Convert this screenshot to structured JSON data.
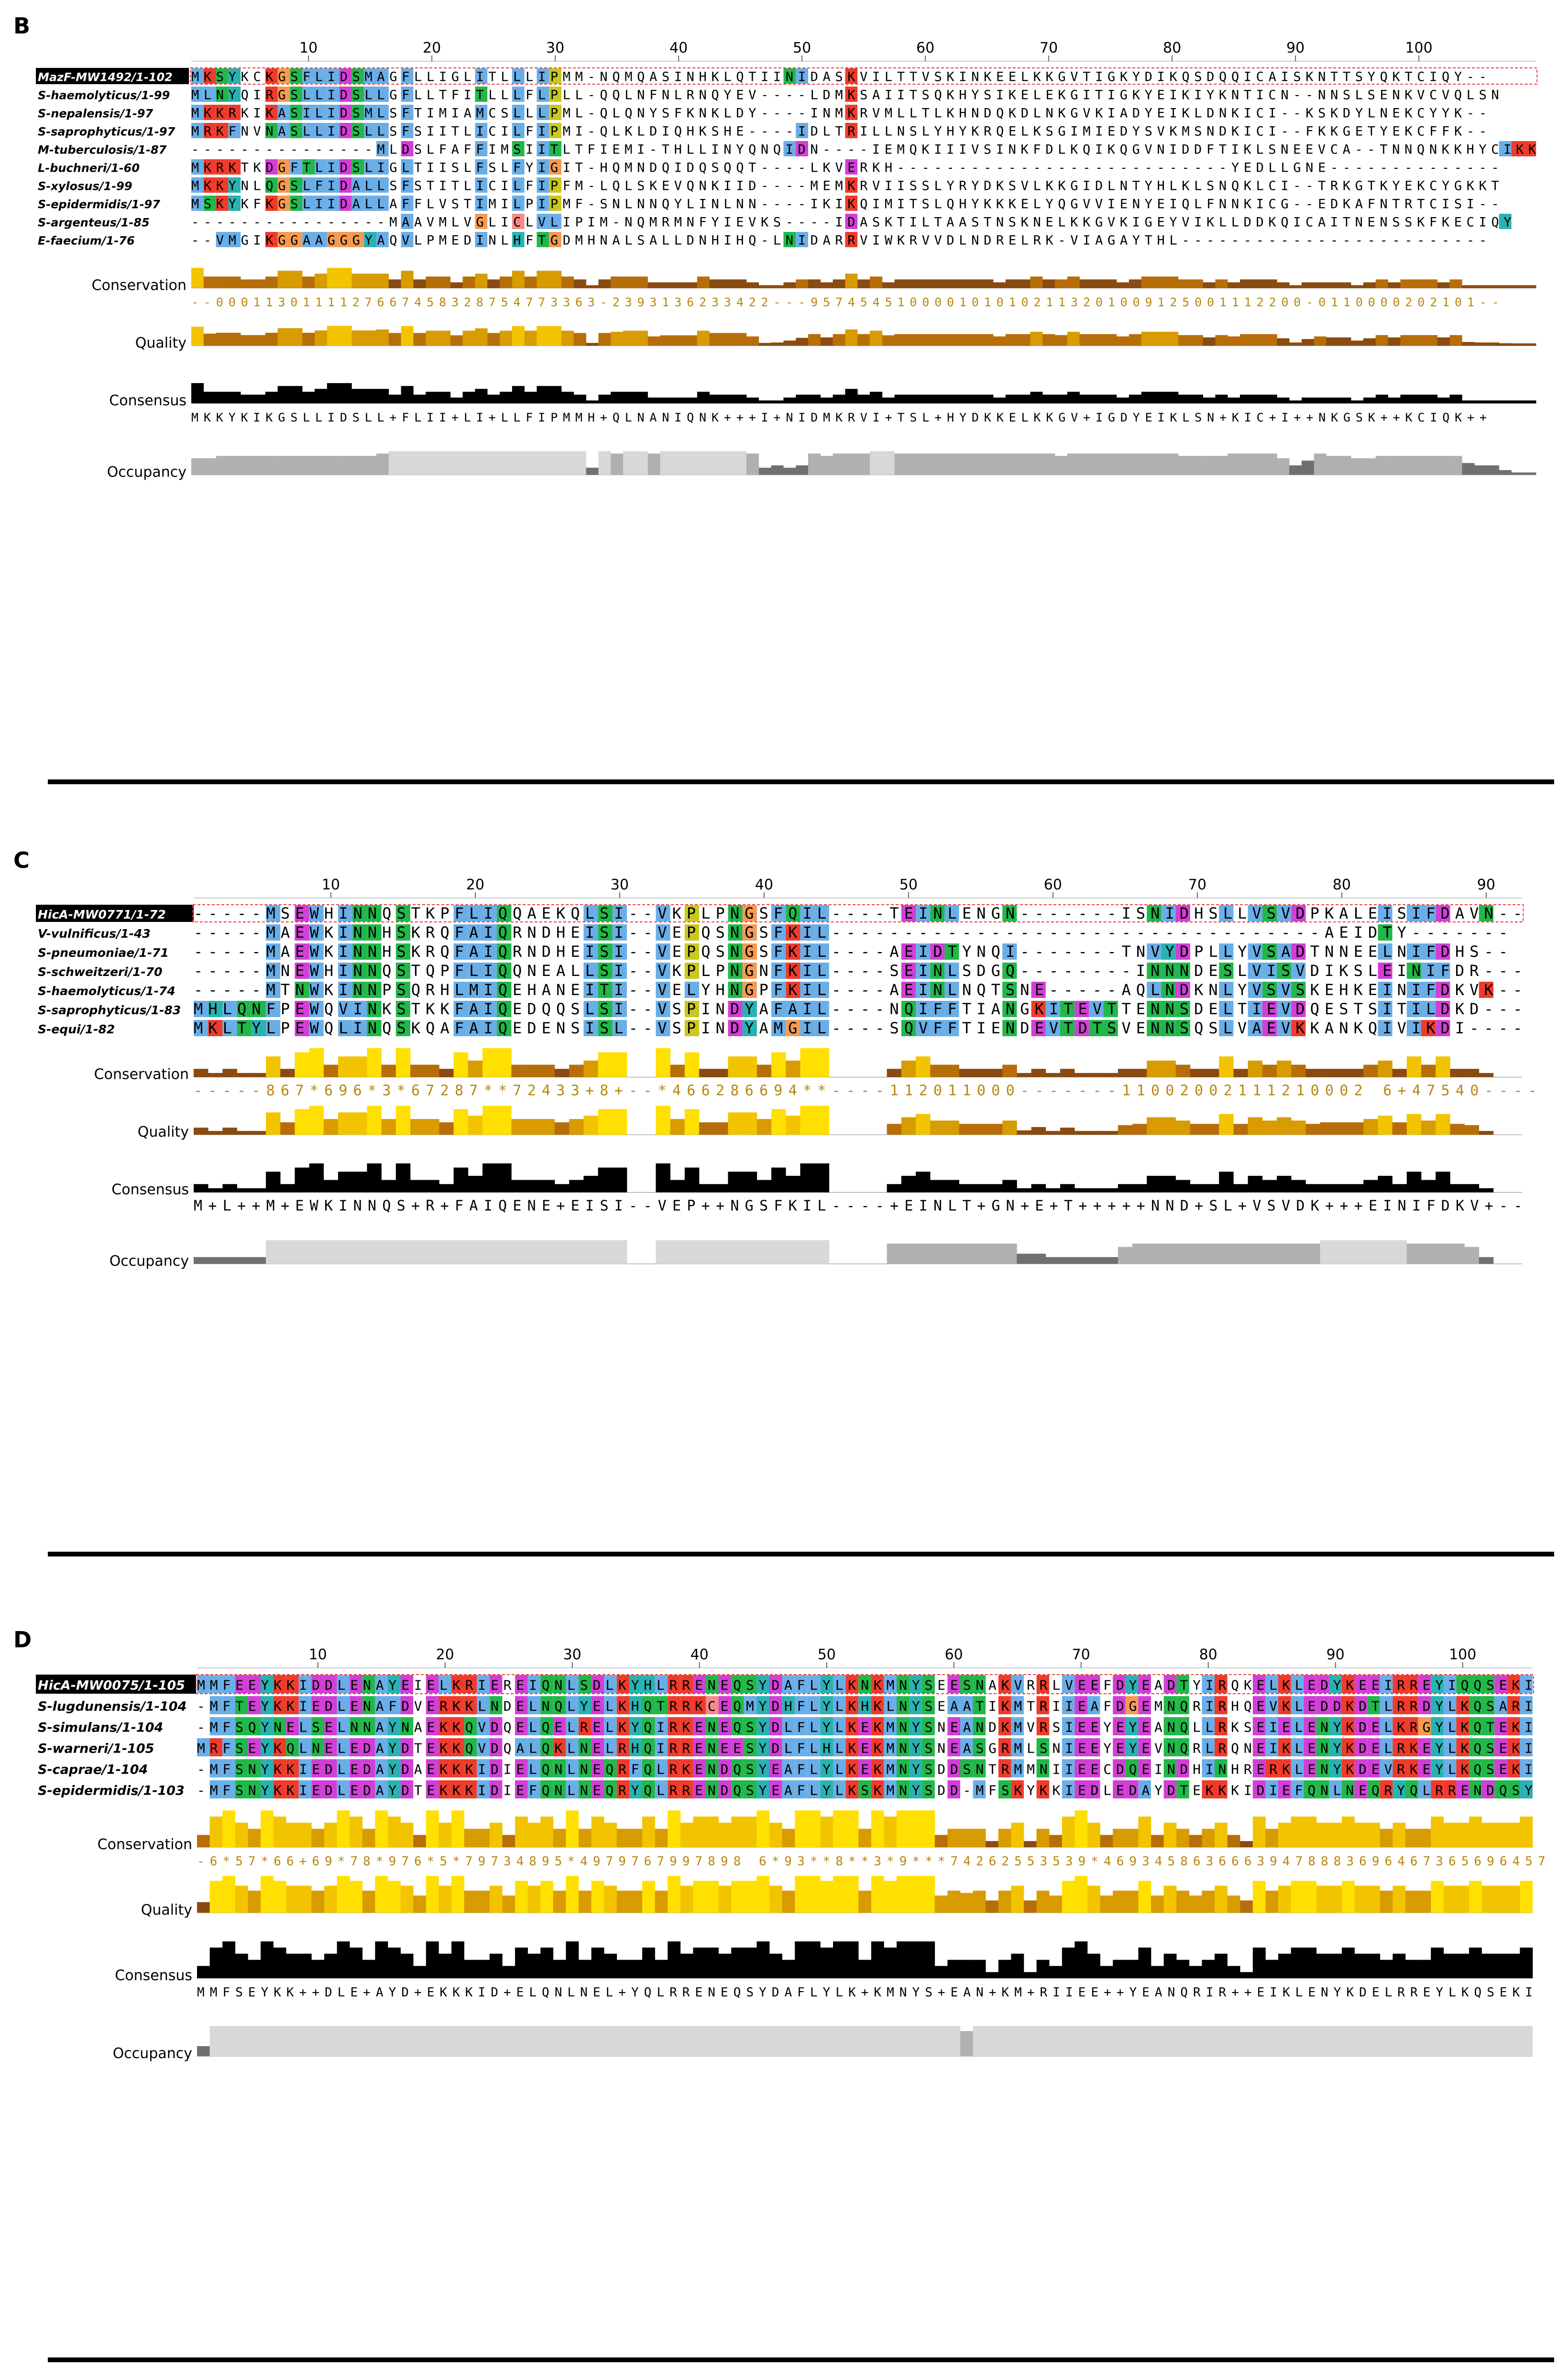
{
  "colors": {
    "hydrophobic": "#6aaee8",
    "positive": "#ef3b2c",
    "negative": "#d13fd6",
    "polar": "#21b84a",
    "glycine": "#f59a52",
    "proline": "#c8c81e",
    "aromatic": "#29b2b2",
    "cysteine": "#f58a8a",
    "conservation_low": "#8a4a10",
    "conservation_high": "#ffe000",
    "consensus": "#000000",
    "occupancy_light": "#d8d8d8",
    "occupancy_mid": "#b0b0b0",
    "occupancy_dark": "#707070",
    "ref_highlight": "#e83a3a",
    "label_bg": "#000000"
  },
  "panels": [
    {
      "letter": "B",
      "max_pos": 102,
      "ticks": [
        "10",
        "20",
        "30",
        "40",
        "50",
        "60",
        "70",
        "80",
        "90",
        "100"
      ],
      "sequences": [
        {
          "name": "MazF-MW1492/1-102",
          "reference": true,
          "seq": "MKSYKCKGSFLIDSMAGFLLIGLITLLLIPMM-NQMQASINHKLQTIINIDASKVILTTVSKINKEELKKGVTIGKYDIKQSDQQICAISKNTTSYQKTCIQY--"
        },
        {
          "name": "S-haemolyticus/1-99",
          "seq": "MLNYQIRGSLLIDSLLGFLLTFITLLLFLPLL-QQLNFNLRNQYEV----LDMKSAIITSQKHYSIKELEKGITIGKYEIKIYKNTICN--NNSLSENKVCVQLSN"
        },
        {
          "name": "S-nepalensis/1-97",
          "seq": "MKKRKIKASILIDSMLSFTIMIAMCSLLLPML-QLQNYSFKNKLDY----INMKRVMLLTLKHNDQKDLNKGVKIADYEIKLDNKICI--KSKDYLNEKCYYK--"
        },
        {
          "name": "S-saprophyticus/1-97",
          "seq": "MRKFNVNASLLIDSLLSFSIITLICILFIPMI-QLKLDIQHKSHE----IDLTRILLNSLYHYKRQELKSGIMIEDYSVKMSNDKICI--FKKGETYEKCFFK--"
        },
        {
          "name": "M-tuberculosis/1-87",
          "seq": "---------------MLDSLFAFFIMSIITLTFIEMI-THLLINYQNQIDN----IEMQKIIIVSINKFDLKQIKQGVNIDDFTIKLSNEEVCA--TNNQNKKHYCIKK"
        },
        {
          "name": "L-buchneri/1-60",
          "seq": "MKRKTKDGFTLIDSLIGLTIISLFSLFYIGIT-HQMNDQIDQSQQT----LKVERKH---------------------------YEDLLGNE--------------"
        },
        {
          "name": "S-xylosus/1-99",
          "seq": "MKKYNLQGSLFIDALLSFSTITLICILFIPFM-LQLSKEVQNKIID----MEMKRVIISSLYRYDKSVLKKGIDLNTYHLKLSNQKLCI--TRKGTKYEKCYGKKT"
        },
        {
          "name": "S-epidermidis/1-97",
          "seq": "MSKYKFKGSLIIDALLAFFLVSTIMILPIPMF-SNLNNQYLINLNN----IKIKQIMITSLQHYKKKELYQGVVIENYEIQLFNNKICG--EDKAFNTRTCISI--"
        },
        {
          "name": "S-argenteus/1-85",
          "seq": "----------------MAAVMLVGLICLVLIPIM-NQMRMNFYIEVKS----IDASKTILTAASTNSKNELKKGVKIGEYVIKLLDDKQICAITNENSSKFKECIQY"
        },
        {
          "name": "E-faecium/1-76",
          "seq": "--VMGIKGGAAGGGYAQVLPMEDINLHFTGDMHNALSALLDNHIHQ-LNIDARRVIWKRVVDLNDRELRK-VIAGAYTHL-------------------------"
        }
      ],
      "conservation_text": "--0001130111127667458328754773363-2393136233422---9574545100001010102113201009125001112200-0110000202101--",
      "consensus_text": "MKKYKIKGSLLIDSLL+FLII+LI+LLFIPMMH+QLNANIQNK+++I+NIDMKRVI+TSL+HYDKKELKKGV+IGDYEIKLSN+KIC+I++NKGSK++KCIQK++",
      "labels": {
        "conservation": "Conservation",
        "quality": "Quality",
        "consensus": "Consensus",
        "occupancy": "Occupancy"
      }
    },
    {
      "letter": "C",
      "max_pos": 93,
      "ticks": [
        "10",
        "20",
        "30",
        "40",
        "50",
        "60",
        "70",
        "80",
        "90"
      ],
      "sequences": [
        {
          "name": "HicA-MW0771/1-72",
          "reference": true,
          "seq": "-----MSEWHINNQSTKPFLIQQAEKQLSI--VKPLPNGSFQIL----TEINLENGN-------ISNIDHSLLVSVDPKALEISIFDAVN--"
        },
        {
          "name": "V-vulnificus/1-43",
          "seq": "-----MAEWKINNHSKRQFAIQRNDHEISI--VEPQSNGSFKIL----------------------------------AEIDTY-------"
        },
        {
          "name": "S-pneumoniae/1-71",
          "seq": "-----MAEWKINNHSKRQFAIQRNDHEISI--VEPQSNGSFKIL----AEIDTYNQI-------TNVYDPLLYVSADTNNEELNIFDHS--"
        },
        {
          "name": "S-schweitzeri/1-70",
          "seq": "-----MNEWHINNQSTQPFLIQQNEALLSI--VKPLPNGNFKIL----SEINLSDGQ--------INNNDESLVISVDIKSLEINIFDR---"
        },
        {
          "name": "S-haemolyticus/1-74",
          "seq": "-----MTNWKINNPSQRHLMIQEHANEITI--VELYHNGPFKIL----AEINLNQTSNE-----AQLNDKNLYVSVSKEHKEINIFDKVK--"
        },
        {
          "name": "S-saprophyticus/1-83",
          "seq": "MHLQNFPEWQVINKSTKKFAIQEDQQSLSI--VSPINDYAFAIL----NQIFFTIANGKITEVTTENNSDELTIEVDQESTSITILDKD---"
        },
        {
          "name": "S-equi/1-82",
          "seq": "MKLTYLPEWQLINQSKQAFAIQEDENSISL--VSPINDYAMGIL----SQVFFTIENDEVTDTSVENNSQSLVAEVKKANKQIVIKDI----"
        }
      ],
      "conservation_text": "-----867*696*3*67287**72433+8+--*466286694**----112011000-------11002002111210002 6+47540----",
      "consensus_text": "M+L++M+EWKINNQS+R+FAIQENE+EISI--VEP++NGSFKIL----+EINLT+GN+E+T+++++NND+SL+VSVDK+++EINIFDKV+--",
      "labels": {
        "conservation": "Conservation",
        "quality": "Quality",
        "consensus": "Consensus",
        "occupancy": "Occupancy"
      }
    },
    {
      "letter": "D",
      "max_pos": 105,
      "ticks": [
        "10",
        "20",
        "30",
        "40",
        "50",
        "60",
        "70",
        "80",
        "90",
        "100"
      ],
      "sequences": [
        {
          "name": "HicA-MW0075/1-105",
          "reference": true,
          "seq": "MMFEEYKKIDDLENAYEIELKRIEREIQNLSDLKYHLRRENEQSYDAFLYLKNKMNYSEESNAKVRRLVEEFDYEADTYIRQKELKLEDYKEEIRREYIQQSEKI"
        },
        {
          "name": "S-lugdunensis/1-104",
          "seq": "-MFTEYKKIEDLENAFDVERKKLNDELNQLYELKHQTRRKCEQMYDHFLYLKHKLNYSEAATIKMTRIIEAFDGEMNQRIRHQEVKLEDDKDTLRRDYLKQSARI"
        },
        {
          "name": "S-simulans/1-104",
          "seq": "-MFSQYNELSELNNAYNAEKKQVDQELQELRELKYQIRKENEQSYDLFLYLKEKMNYSNEANDKMVRSIEEYEYEANQLLRKSEIELENYKDELKRGYLKQTEKI"
        },
        {
          "name": "S-warneri/1-105",
          "seq": "MRFSEYKQLNELEDAYDTEKKQVDQALQKLNELRHQIRRENEESYDLFLHLKEKMNYSNEASGRMLSNIEEYEYEVNQRLRQNEIKLENYKDELRKEYLKQSEKI"
        },
        {
          "name": "S-caprae/1-104",
          "seq": "-MFSNYKKIEDLEDAYDAEKKKIDIELQNLNEQRFQLRKENDQSYEAFLYLKEKMNYSDDSNTRMMNIIEECDQEINDHINHRERKLENYKDEVRKEYLKQSEKI"
        },
        {
          "name": "S-epidermidis/1-103",
          "seq": "-MFSNYKKIEDLEDAYDTEKKKIDIEFQNLNEQRYQLRRENDQSYEAFLYLKSKMNYSDD-MFSKYKKIEDLEDAYDTEKKKIDIEFQNLNEQRYQLRRENDQSY"
        }
      ],
      "conservation_text": "-6*57*66+69*78*976*5*79734895*4979767997898 6*93**8**3*9***74262553539*46934586366639478883696467365696457",
      "consensus_text": "MMFSEYKK++DLE+AYD+EKKKID+ELQNLNEL+YQLRRENEQSYDAFLYLK+KMNYS+EAN+KM+RIIEE++YEANQRIR++EIKLENYKDELRREYLKQSEKI",
      "labels": {
        "conservation": "Conservation",
        "quality": "Quality",
        "consensus": "Consensus",
        "occupancy": "Occupancy"
      }
    }
  ]
}
